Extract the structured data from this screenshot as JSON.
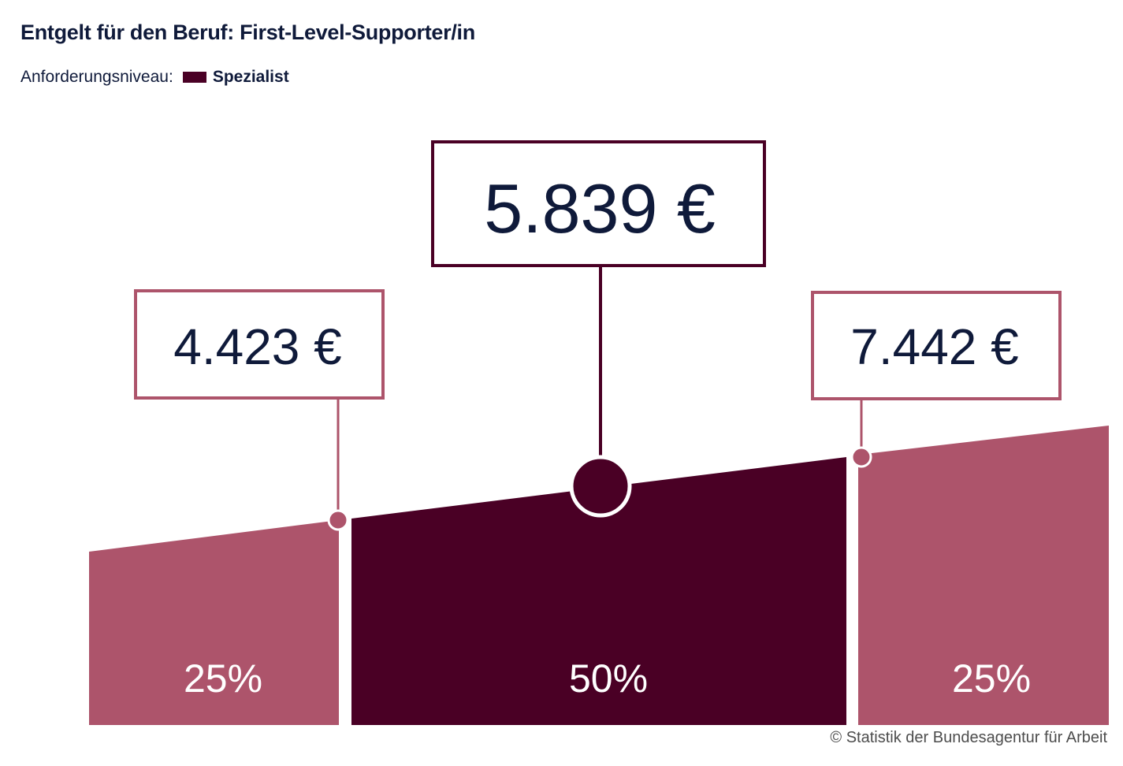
{
  "title": "Entgelt für den Beruf: First-Level-Supporter/in",
  "legend": {
    "label": "Anforderungsniveau:",
    "value": "Spezialist"
  },
  "colors": {
    "dark": "#4a0025",
    "light": "#ad546b",
    "text": "#0f1a3a",
    "white": "#ffffff"
  },
  "chart_data": {
    "type": "area",
    "segments": [
      {
        "label": "25%",
        "share": 25
      },
      {
        "label": "50%",
        "share": 50
      },
      {
        "label": "25%",
        "share": 25
      }
    ],
    "markers": [
      {
        "label": "4.423 €",
        "value": 4423
      },
      {
        "label": "5.839 €",
        "value": 5839
      },
      {
        "label": "7.442 €",
        "value": 7442
      }
    ]
  },
  "credit": "© Statistik der Bundesagentur für Arbeit"
}
